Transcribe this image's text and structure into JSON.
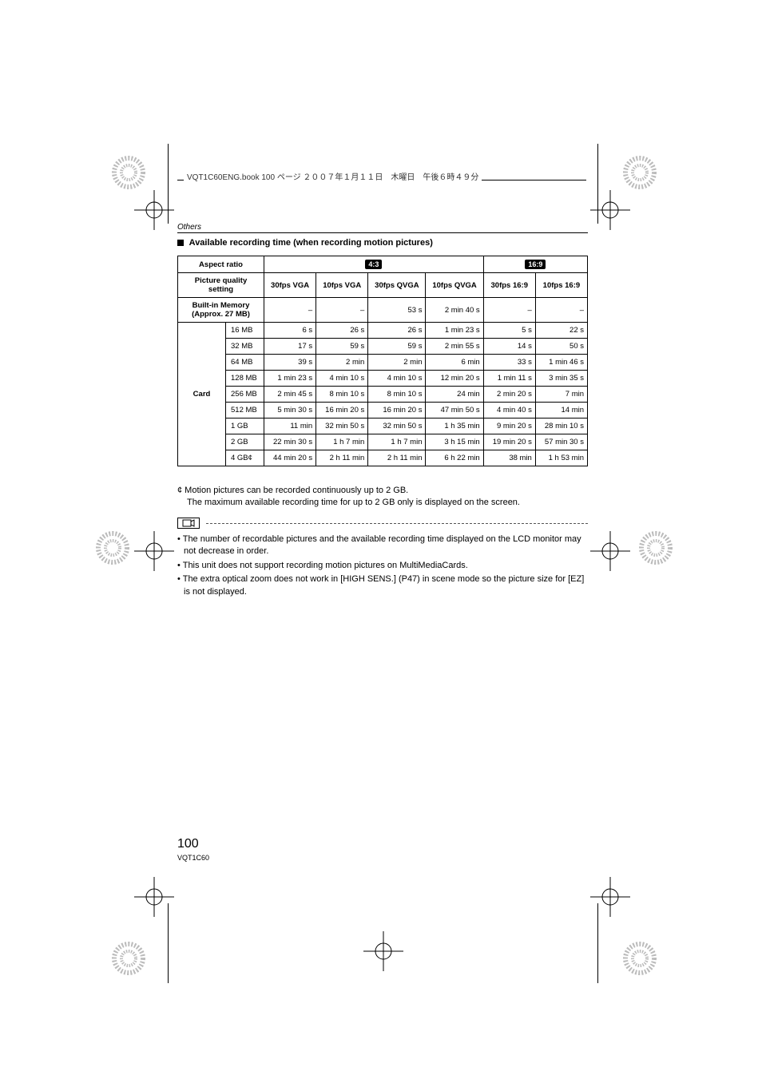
{
  "header_text": "VQT1C60ENG.book  100 ページ  ２００７年１月１１日　木曜日　午後６時４９分",
  "others_label": "Others",
  "section_title": "Available recording time (when recording motion pictures)",
  "table": {
    "headers": {
      "aspect_ratio": "Aspect ratio",
      "quality": "Picture quality setting",
      "builtin": "Built-in Memory (Approx. 27 MB)",
      "card": "Card",
      "h43": "4:3",
      "h169": "16:9",
      "cols": [
        "30fps VGA",
        "10fps VGA",
        "30fps QVGA",
        "10fps QVGA",
        "30fps 16:9",
        "10fps 16:9"
      ]
    },
    "builtin_row": [
      "–",
      "–",
      "53 s",
      "2 min 40 s",
      "–",
      "–"
    ],
    "card_labels": [
      "16 MB",
      "32 MB",
      "64 MB",
      "128 MB",
      "256 MB",
      "512 MB",
      "1 GB",
      "2 GB",
      "4 GB"
    ],
    "card_suffix": "¢",
    "card_rows": [
      [
        "6 s",
        "26 s",
        "26 s",
        "1 min 23 s",
        "5 s",
        "22 s"
      ],
      [
        "17 s",
        "59 s",
        "59 s",
        "2 min 55 s",
        "14 s",
        "50 s"
      ],
      [
        "39 s",
        "2 min",
        "2 min",
        "6 min",
        "33 s",
        "1 min 46 s"
      ],
      [
        "1 min 23 s",
        "4 min 10 s",
        "4 min 10 s",
        "12 min 20 s",
        "1 min 11 s",
        "3 min 35 s"
      ],
      [
        "2 min 45 s",
        "8 min 10 s",
        "8 min 10 s",
        "24 min",
        "2 min 20 s",
        "7 min"
      ],
      [
        "5 min 30 s",
        "16 min 20 s",
        "16 min 20 s",
        "47 min 50 s",
        "4 min 40 s",
        "14 min"
      ],
      [
        "11 min",
        "32 min 50 s",
        "32 min 50 s",
        "1 h 35 min",
        "9 min 20 s",
        "28 min 10 s"
      ],
      [
        "22 min 30 s",
        "1 h 7 min",
        "1 h 7 min",
        "3 h 15 min",
        "19 min 20 s",
        "57 min 30 s"
      ],
      [
        "44 min 20 s",
        "2 h 11 min",
        "2 h 11 min",
        "6 h 22 min",
        "38 min",
        "1 h 53 min"
      ]
    ]
  },
  "footnote_star": "¢ Motion pictures can be recorded continuously up to 2 GB.",
  "footnote_line2": "The maximum available recording time for up to 2 GB only is displayed on the screen.",
  "bullets": [
    "The number of recordable pictures and the available recording time displayed on the LCD monitor may not decrease in order.",
    "This unit does not support recording motion pictures on MultiMediaCards.",
    "The extra optical zoom does not work in [HIGH SENS.] (P47) in scene mode so the picture size for [EZ] is not displayed."
  ],
  "page_number": "100",
  "doc_code": "VQT1C60"
}
